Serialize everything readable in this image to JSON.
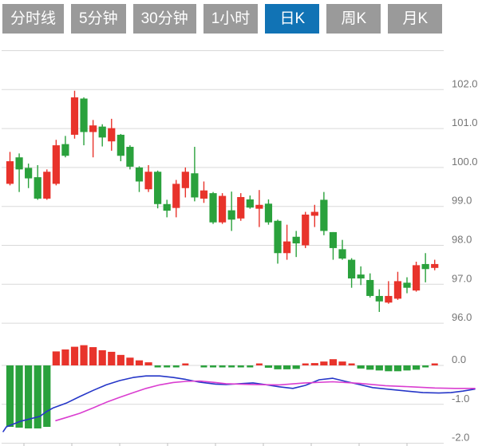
{
  "tabs": {
    "items": [
      {
        "label": "分时线",
        "active": false
      },
      {
        "label": "5分钟",
        "active": false
      },
      {
        "label": "30分钟",
        "active": false
      },
      {
        "label": "1小时",
        "active": false
      },
      {
        "label": "日K",
        "active": true
      },
      {
        "label": "周K",
        "active": false
      },
      {
        "label": "月K",
        "active": false
      }
    ]
  },
  "chart_data": {
    "type": "candlestick-with-macd",
    "price_axis": {
      "labels": [
        "102.0",
        "101.0",
        "100.0",
        "99.0",
        "98.0",
        "97.0",
        "96.0"
      ],
      "values": [
        102.0,
        101.0,
        100.0,
        99.0,
        98.0,
        97.0,
        96.0
      ],
      "unlabeled_gridline_value": 103.0,
      "range": [
        95.8,
        103.2
      ]
    },
    "macd_axis": {
      "labels": [
        "0.0",
        "-1.0",
        "-2.0"
      ],
      "values": [
        0.0,
        -1.0,
        -2.0
      ],
      "range": [
        -2.1,
        0.6
      ]
    },
    "grid": true,
    "legend": "none",
    "candles": [
      {
        "o": 99.58,
        "h": 100.4,
        "l": 99.54,
        "c": 100.16
      },
      {
        "o": 100.26,
        "h": 100.36,
        "l": 99.37,
        "c": 99.95
      },
      {
        "o": 99.99,
        "h": 100.1,
        "l": 99.47,
        "c": 99.72
      },
      {
        "o": 99.75,
        "h": 100.06,
        "l": 99.17,
        "c": 99.2
      },
      {
        "o": 99.2,
        "h": 99.95,
        "l": 99.17,
        "c": 99.89
      },
      {
        "o": 99.58,
        "h": 100.71,
        "l": 99.54,
        "c": 100.57
      },
      {
        "o": 100.6,
        "h": 100.81,
        "l": 100.26,
        "c": 100.3
      },
      {
        "o": 100.84,
        "h": 101.97,
        "l": 100.74,
        "c": 101.8
      },
      {
        "o": 101.77,
        "h": 101.8,
        "l": 100.57,
        "c": 100.91
      },
      {
        "o": 100.91,
        "h": 101.22,
        "l": 100.26,
        "c": 101.08
      },
      {
        "o": 101.05,
        "h": 101.11,
        "l": 100.54,
        "c": 100.77
      },
      {
        "o": 100.67,
        "h": 101.25,
        "l": 100.43,
        "c": 101.01
      },
      {
        "o": 100.84,
        "h": 100.86,
        "l": 100.16,
        "c": 100.3
      },
      {
        "o": 100.53,
        "h": 100.57,
        "l": 99.95,
        "c": 100.02
      },
      {
        "o": 100.0,
        "h": 100.03,
        "l": 99.37,
        "c": 99.64
      },
      {
        "o": 99.44,
        "h": 100.06,
        "l": 99.37,
        "c": 99.89
      },
      {
        "o": 99.89,
        "h": 99.92,
        "l": 98.95,
        "c": 99.06
      },
      {
        "o": 99.06,
        "h": 99.17,
        "l": 98.72,
        "c": 98.89
      },
      {
        "o": 98.96,
        "h": 99.68,
        "l": 98.72,
        "c": 99.58
      },
      {
        "o": 99.47,
        "h": 100.0,
        "l": 99.23,
        "c": 99.89
      },
      {
        "o": 99.85,
        "h": 100.53,
        "l": 99.13,
        "c": 99.23
      },
      {
        "o": 99.2,
        "h": 99.64,
        "l": 99.09,
        "c": 99.41
      },
      {
        "o": 99.34,
        "h": 99.37,
        "l": 98.55,
        "c": 98.59
      },
      {
        "o": 98.59,
        "h": 99.34,
        "l": 98.55,
        "c": 99.27
      },
      {
        "o": 98.9,
        "h": 99.38,
        "l": 98.37,
        "c": 98.66
      },
      {
        "o": 98.69,
        "h": 99.34,
        "l": 98.63,
        "c": 99.24
      },
      {
        "o": 99.18,
        "h": 99.28,
        "l": 98.94,
        "c": 98.97
      },
      {
        "o": 98.94,
        "h": 99.42,
        "l": 98.47,
        "c": 99.04
      },
      {
        "o": 99.07,
        "h": 99.18,
        "l": 98.53,
        "c": 98.59
      },
      {
        "o": 98.63,
        "h": 98.66,
        "l": 97.53,
        "c": 97.8
      },
      {
        "o": 97.8,
        "h": 98.53,
        "l": 97.63,
        "c": 98.1
      },
      {
        "o": 98.22,
        "h": 98.37,
        "l": 97.7,
        "c": 98.05
      },
      {
        "o": 98.0,
        "h": 98.86,
        "l": 97.93,
        "c": 98.79
      },
      {
        "o": 98.76,
        "h": 99.04,
        "l": 98.47,
        "c": 98.86
      },
      {
        "o": 99.17,
        "h": 99.37,
        "l": 98.26,
        "c": 98.37
      },
      {
        "o": 98.34,
        "h": 98.34,
        "l": 97.63,
        "c": 97.93
      },
      {
        "o": 97.9,
        "h": 98.14,
        "l": 97.63,
        "c": 97.66
      },
      {
        "o": 97.63,
        "h": 97.67,
        "l": 96.91,
        "c": 97.15
      },
      {
        "o": 97.25,
        "h": 97.46,
        "l": 96.98,
        "c": 97.15
      },
      {
        "o": 97.11,
        "h": 97.28,
        "l": 96.66,
        "c": 96.7
      },
      {
        "o": 96.7,
        "h": 96.87,
        "l": 96.29,
        "c": 96.56
      },
      {
        "o": 96.53,
        "h": 97.08,
        "l": 96.5,
        "c": 96.7
      },
      {
        "o": 96.63,
        "h": 97.32,
        "l": 96.6,
        "c": 97.08
      },
      {
        "o": 97.04,
        "h": 97.18,
        "l": 96.77,
        "c": 96.91
      },
      {
        "o": 96.84,
        "h": 97.58,
        "l": 96.81,
        "c": 97.49
      },
      {
        "o": 97.52,
        "h": 97.8,
        "l": 97.05,
        "c": 97.39
      },
      {
        "o": 97.42,
        "h": 97.63,
        "l": 97.36,
        "c": 97.52
      }
    ],
    "macd": {
      "histogram": [
        -1.58,
        -1.6,
        -1.62,
        -1.62,
        -1.58,
        0.36,
        0.41,
        0.48,
        0.52,
        0.47,
        0.39,
        0.35,
        0.27,
        0.2,
        0.13,
        0.08,
        -0.05,
        -0.05,
        -0.04,
        0.03,
        0.0,
        -0.04,
        -0.04,
        -0.04,
        -0.05,
        -0.04,
        -0.03,
        0.03,
        -0.06,
        -0.1,
        -0.1,
        -0.09,
        0.02,
        0.06,
        0.1,
        0.16,
        0.1,
        0.03,
        -0.08,
        -0.11,
        -0.13,
        -0.15,
        -0.15,
        -0.13,
        -0.11,
        -0.05,
        0.03
      ],
      "dif": [
        [
          4,
          -1.7
        ],
        [
          8,
          -1.58
        ],
        [
          25,
          -1.44
        ],
        [
          50,
          -1.31
        ],
        [
          58,
          -1.19
        ],
        [
          67,
          -1.09
        ],
        [
          83,
          -0.97
        ],
        [
          100,
          -0.8
        ],
        [
          117,
          -0.64
        ],
        [
          133,
          -0.5
        ],
        [
          150,
          -0.39
        ],
        [
          167,
          -0.31
        ],
        [
          183,
          -0.27
        ],
        [
          200,
          -0.27
        ],
        [
          217,
          -0.31
        ],
        [
          233,
          -0.36
        ],
        [
          250,
          -0.43
        ],
        [
          270,
          -0.48
        ],
        [
          283,
          -0.49
        ],
        [
          300,
          -0.47
        ],
        [
          317,
          -0.45
        ],
        [
          335,
          -0.5
        ],
        [
          350,
          -0.55
        ],
        [
          367,
          -0.59
        ],
        [
          383,
          -0.51
        ],
        [
          400,
          -0.37
        ],
        [
          417,
          -0.33
        ],
        [
          433,
          -0.41
        ],
        [
          450,
          -0.49
        ],
        [
          467,
          -0.57
        ],
        [
          490,
          -0.62
        ],
        [
          510,
          -0.66
        ],
        [
          530,
          -0.7
        ],
        [
          550,
          -0.71
        ],
        [
          565,
          -0.7
        ],
        [
          580,
          -0.66
        ],
        [
          595,
          -0.61
        ]
      ],
      "dea": [
        [
          70,
          -1.42
        ],
        [
          83,
          -1.34
        ],
        [
          100,
          -1.23
        ],
        [
          117,
          -1.09
        ],
        [
          133,
          -0.95
        ],
        [
          150,
          -0.82
        ],
        [
          167,
          -0.7
        ],
        [
          183,
          -0.59
        ],
        [
          200,
          -0.5
        ],
        [
          217,
          -0.44
        ],
        [
          233,
          -0.41
        ],
        [
          250,
          -0.4
        ],
        [
          270,
          -0.44
        ],
        [
          283,
          -0.47
        ],
        [
          317,
          -0.49
        ],
        [
          350,
          -0.5
        ],
        [
          383,
          -0.45
        ],
        [
          417,
          -0.42
        ],
        [
          450,
          -0.46
        ],
        [
          483,
          -0.52
        ],
        [
          515,
          -0.55
        ],
        [
          545,
          -0.58
        ],
        [
          570,
          -0.59
        ],
        [
          595,
          -0.59
        ]
      ]
    },
    "colors": {
      "up": "#e8332b",
      "down": "#2aa13c",
      "dif_line": "#2536c8",
      "dea_line": "#da3ed0",
      "grid": "#d9d9d9",
      "axis_label": "#757575",
      "tab_bg": "#9a9a9a",
      "tab_active_bg": "#1173b5",
      "tab_text": "#ffffff"
    }
  }
}
